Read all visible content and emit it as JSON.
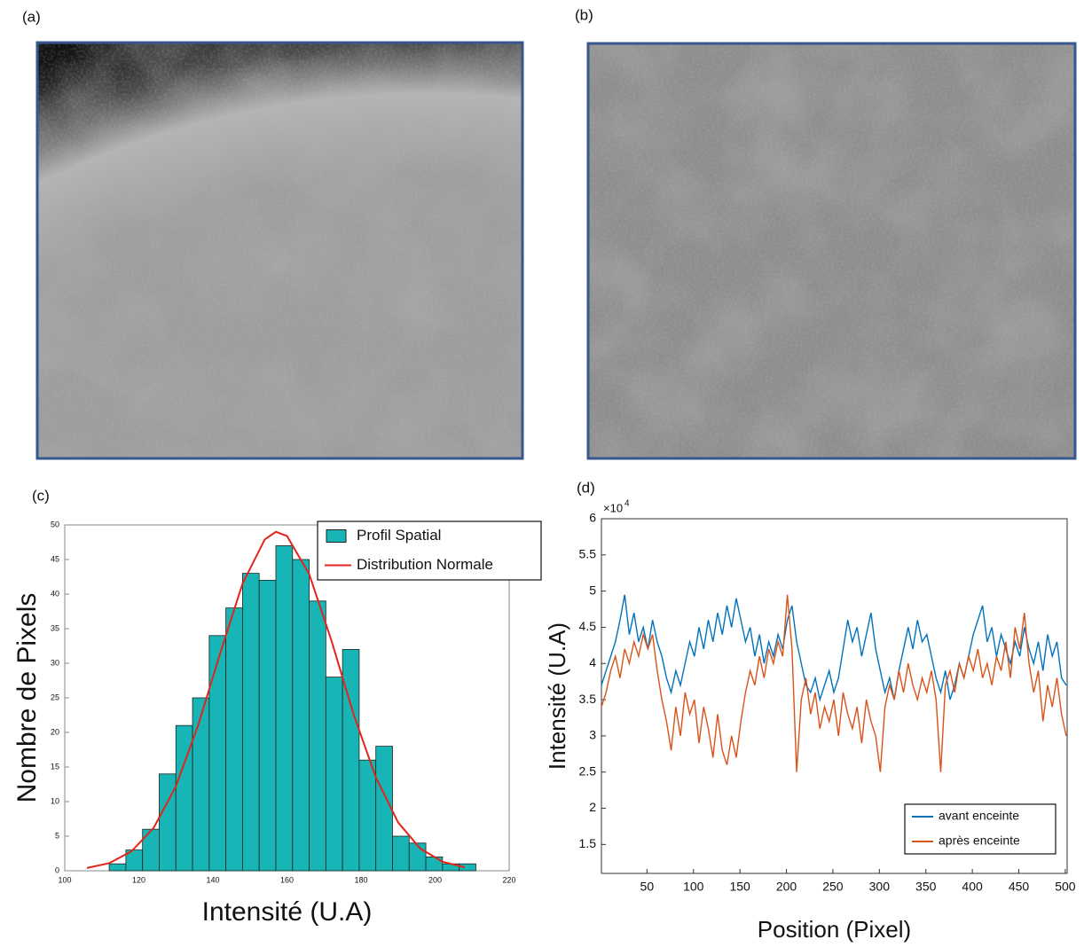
{
  "panel_labels": [
    "(a)",
    "(b)",
    "(c)",
    "(d)"
  ],
  "chart_data": [
    {
      "type": "histogram",
      "xlabel": "Intensité (U.A)",
      "ylabel": "Nombre de Pixels",
      "name": "Profil Spatial",
      "color": "#17b5b5",
      "bins": [
        112,
        116.5,
        121,
        125.5,
        130,
        134.5,
        139,
        143.5,
        148,
        152.5,
        157,
        161.5,
        166,
        170.5,
        175,
        179.5,
        184,
        188.5,
        193,
        197.5,
        202,
        206.5,
        211
      ],
      "counts": [
        1,
        3,
        6,
        14,
        21,
        25,
        34,
        38,
        43,
        42,
        47,
        45,
        39,
        28,
        32,
        16,
        18,
        5,
        4,
        2,
        1,
        1
      ],
      "curve": {
        "name": "Distribution Normale",
        "color": "#e3241b",
        "x": [
          106,
          112,
          118,
          124,
          130,
          136,
          142,
          148,
          154,
          157,
          160,
          166,
          172,
          178,
          184,
          190,
          196,
          202,
          208
        ],
        "values": [
          0.4,
          1.1,
          2.8,
          6.2,
          12.2,
          21.0,
          31.5,
          41.5,
          47.9,
          49.0,
          48.4,
          42.9,
          33.3,
          22.6,
          13.5,
          7.0,
          3.2,
          1.3,
          0.5
        ]
      },
      "xlim": [
        100,
        220
      ],
      "xticks": [
        100,
        120,
        140,
        160,
        180,
        200,
        220
      ],
      "ylim": [
        0,
        50
      ],
      "yticks": [
        0,
        5,
        10,
        15,
        20,
        25,
        30,
        35,
        40,
        45,
        50
      ],
      "grid": false,
      "legend": "top-right"
    },
    {
      "type": "line",
      "xlabel": "Position (Pixel)",
      "ylabel": "Intensité (U.A)",
      "y_multiplier": "×10",
      "y_exponent": "4",
      "x": [
        1,
        6,
        11,
        16,
        21,
        26,
        31,
        36,
        41,
        46,
        51,
        56,
        61,
        66,
        71,
        76,
        81,
        86,
        91,
        96,
        101,
        106,
        111,
        116,
        121,
        126,
        131,
        136,
        141,
        146,
        151,
        156,
        161,
        166,
        171,
        176,
        181,
        186,
        191,
        196,
        201,
        206,
        211,
        216,
        221,
        226,
        231,
        236,
        241,
        246,
        251,
        256,
        261,
        266,
        271,
        276,
        281,
        286,
        291,
        296,
        301,
        306,
        311,
        316,
        321,
        326,
        331,
        336,
        341,
        346,
        351,
        356,
        361,
        366,
        371,
        376,
        381,
        386,
        391,
        396,
        401,
        406,
        411,
        416,
        421,
        426,
        431,
        436,
        441,
        446,
        451,
        456,
        461,
        466,
        471,
        476,
        481,
        486,
        491,
        496,
        501
      ],
      "series": [
        {
          "name": "avant enceinte",
          "color": "#0072bd",
          "values": [
            3.7,
            3.9,
            4.1,
            4.3,
            4.6,
            4.95,
            4.4,
            4.7,
            4.3,
            4.5,
            4.2,
            4.6,
            4.3,
            4.1,
            3.8,
            3.6,
            3.9,
            3.7,
            4.0,
            4.3,
            4.1,
            4.5,
            4.2,
            4.6,
            4.3,
            4.7,
            4.4,
            4.8,
            4.5,
            4.9,
            4.6,
            4.3,
            4.5,
            4.1,
            4.4,
            4.0,
            4.3,
            4.1,
            4.4,
            4.2,
            4.6,
            4.8,
            4.3,
            4.0,
            3.7,
            3.6,
            3.8,
            3.5,
            3.7,
            3.9,
            3.6,
            3.8,
            4.2,
            4.6,
            4.3,
            4.5,
            4.1,
            4.4,
            4.7,
            4.2,
            3.9,
            3.6,
            3.8,
            3.5,
            3.9,
            4.2,
            4.5,
            4.2,
            4.6,
            4.3,
            4.4,
            4.1,
            3.8,
            3.6,
            3.9,
            3.5,
            3.7,
            4.0,
            3.8,
            4.1,
            4.4,
            4.6,
            4.8,
            4.3,
            4.5,
            4.1,
            4.4,
            4.2,
            4.0,
            4.3,
            4.1,
            4.5,
            4.2,
            4.0,
            4.3,
            3.9,
            4.4,
            4.1,
            4.3,
            3.8,
            3.7
          ]
        },
        {
          "name": "après enceinte",
          "color": "#d95319",
          "values": [
            3.4,
            3.6,
            3.9,
            4.1,
            3.8,
            4.2,
            4.0,
            4.3,
            4.1,
            4.4,
            4.2,
            4.4,
            3.9,
            3.5,
            3.2,
            2.8,
            3.4,
            3.0,
            3.6,
            3.3,
            3.5,
            2.9,
            3.4,
            3.1,
            2.7,
            3.3,
            2.8,
            2.6,
            3.0,
            2.7,
            3.2,
            3.6,
            3.9,
            3.7,
            4.1,
            3.8,
            4.2,
            4.0,
            4.3,
            4.1,
            4.95,
            4.2,
            2.5,
            3.5,
            3.8,
            3.3,
            3.6,
            3.1,
            3.4,
            3.2,
            3.5,
            3.0,
            3.6,
            3.3,
            3.1,
            3.4,
            2.9,
            3.5,
            3.2,
            3.0,
            2.5,
            3.4,
            3.7,
            3.5,
            3.9,
            3.6,
            4.0,
            3.7,
            3.5,
            3.8,
            3.6,
            3.9,
            3.5,
            2.5,
            3.7,
            3.9,
            3.6,
            4.0,
            3.8,
            4.1,
            3.9,
            4.2,
            3.8,
            4.0,
            3.7,
            4.1,
            3.9,
            4.3,
            3.8,
            4.5,
            4.2,
            4.7,
            4.0,
            3.6,
            3.9,
            3.2,
            3.7,
            3.4,
            3.8,
            3.3,
            3.0
          ]
        }
      ],
      "xlim": [
        1,
        502
      ],
      "xticks": [
        50,
        100,
        150,
        200,
        250,
        300,
        350,
        400,
        450,
        500
      ],
      "ylim": [
        1.1,
        6
      ],
      "yticks": [
        1.5,
        2,
        2.5,
        3,
        3.5,
        4,
        4.5,
        5,
        5.5,
        6
      ],
      "grid": false,
      "legend": "bottom-right"
    }
  ]
}
